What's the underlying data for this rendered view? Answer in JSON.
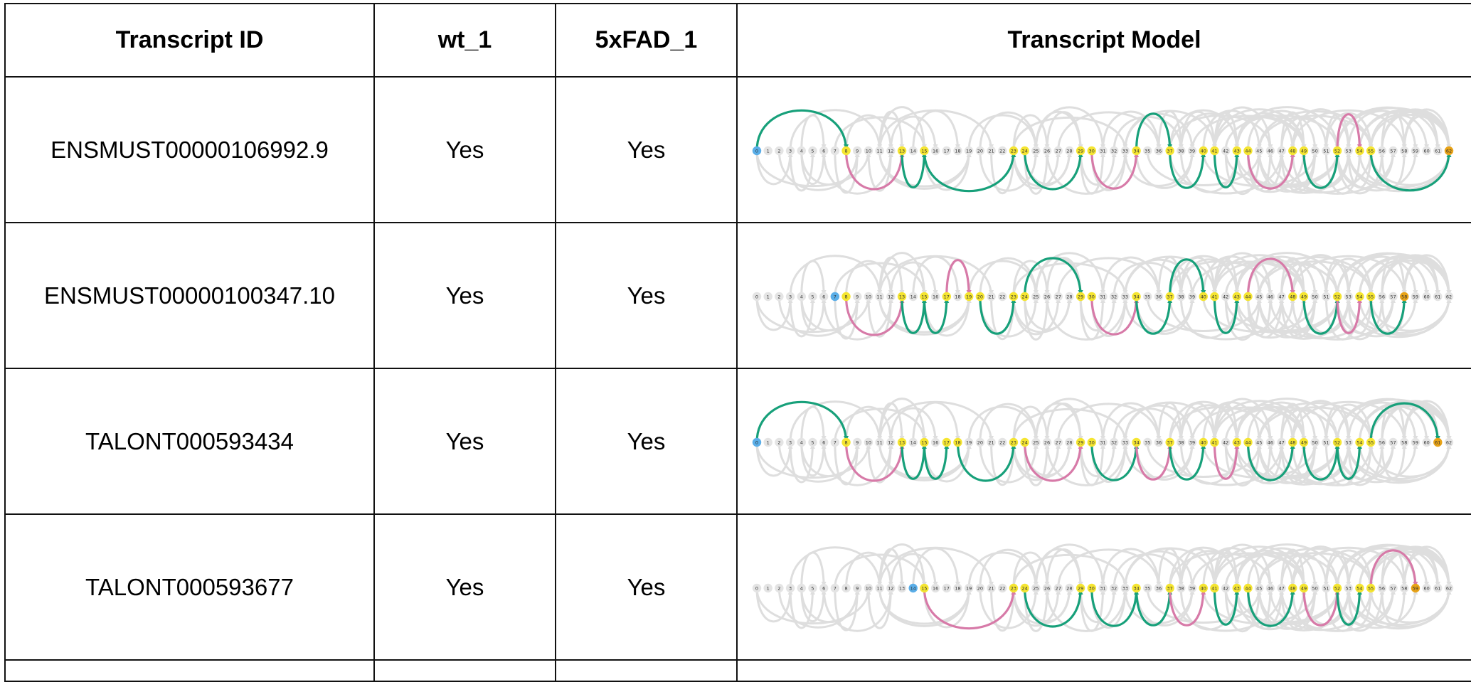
{
  "table": {
    "headers": [
      "Transcript ID",
      "wt_1",
      "5xFAD_1",
      "Transcript Model"
    ],
    "rows": [
      {
        "transcript_id": "ENSMUST00000106992.9",
        "wt_1": "Yes",
        "fxfad_1": "Yes",
        "highlighted": [
          8,
          13,
          15,
          23,
          24,
          29,
          30,
          34,
          37,
          40,
          41,
          43,
          44,
          48,
          49,
          52,
          54,
          55
        ],
        "start": 0,
        "end": 62
      },
      {
        "transcript_id": "ENSMUST00000100347.10",
        "wt_1": "Yes",
        "fxfad_1": "Yes",
        "highlighted": [
          8,
          13,
          15,
          17,
          19,
          20,
          23,
          24,
          29,
          30,
          34,
          37,
          40,
          41,
          43,
          44,
          48,
          49,
          52,
          54,
          55
        ],
        "start": 7,
        "end": 58
      },
      {
        "transcript_id": "TALONT000593434",
        "wt_1": "Yes",
        "fxfad_1": "Yes",
        "highlighted": [
          8,
          13,
          15,
          17,
          18,
          23,
          24,
          29,
          30,
          34,
          37,
          40,
          41,
          43,
          44,
          48,
          49,
          52,
          54,
          55
        ],
        "start": 0,
        "end": 61
      },
      {
        "transcript_id": "TALONT000593677",
        "wt_1": "Yes",
        "fxfad_1": "Yes",
        "highlighted": [
          15,
          23,
          24,
          29,
          30,
          34,
          37,
          40,
          41,
          43,
          44,
          48,
          49,
          52,
          54,
          55
        ],
        "start": 14,
        "end": 59
      }
    ]
  },
  "model_nodes": {
    "count": 63,
    "colors": {
      "default": "#e4e4e4",
      "highlight": "#f5e531",
      "start": "#5aaee8",
      "end": "#e8a317",
      "arc_grey": "#dedede",
      "arc_green": "#17a07a",
      "arc_pink": "#d77aa8"
    }
  }
}
